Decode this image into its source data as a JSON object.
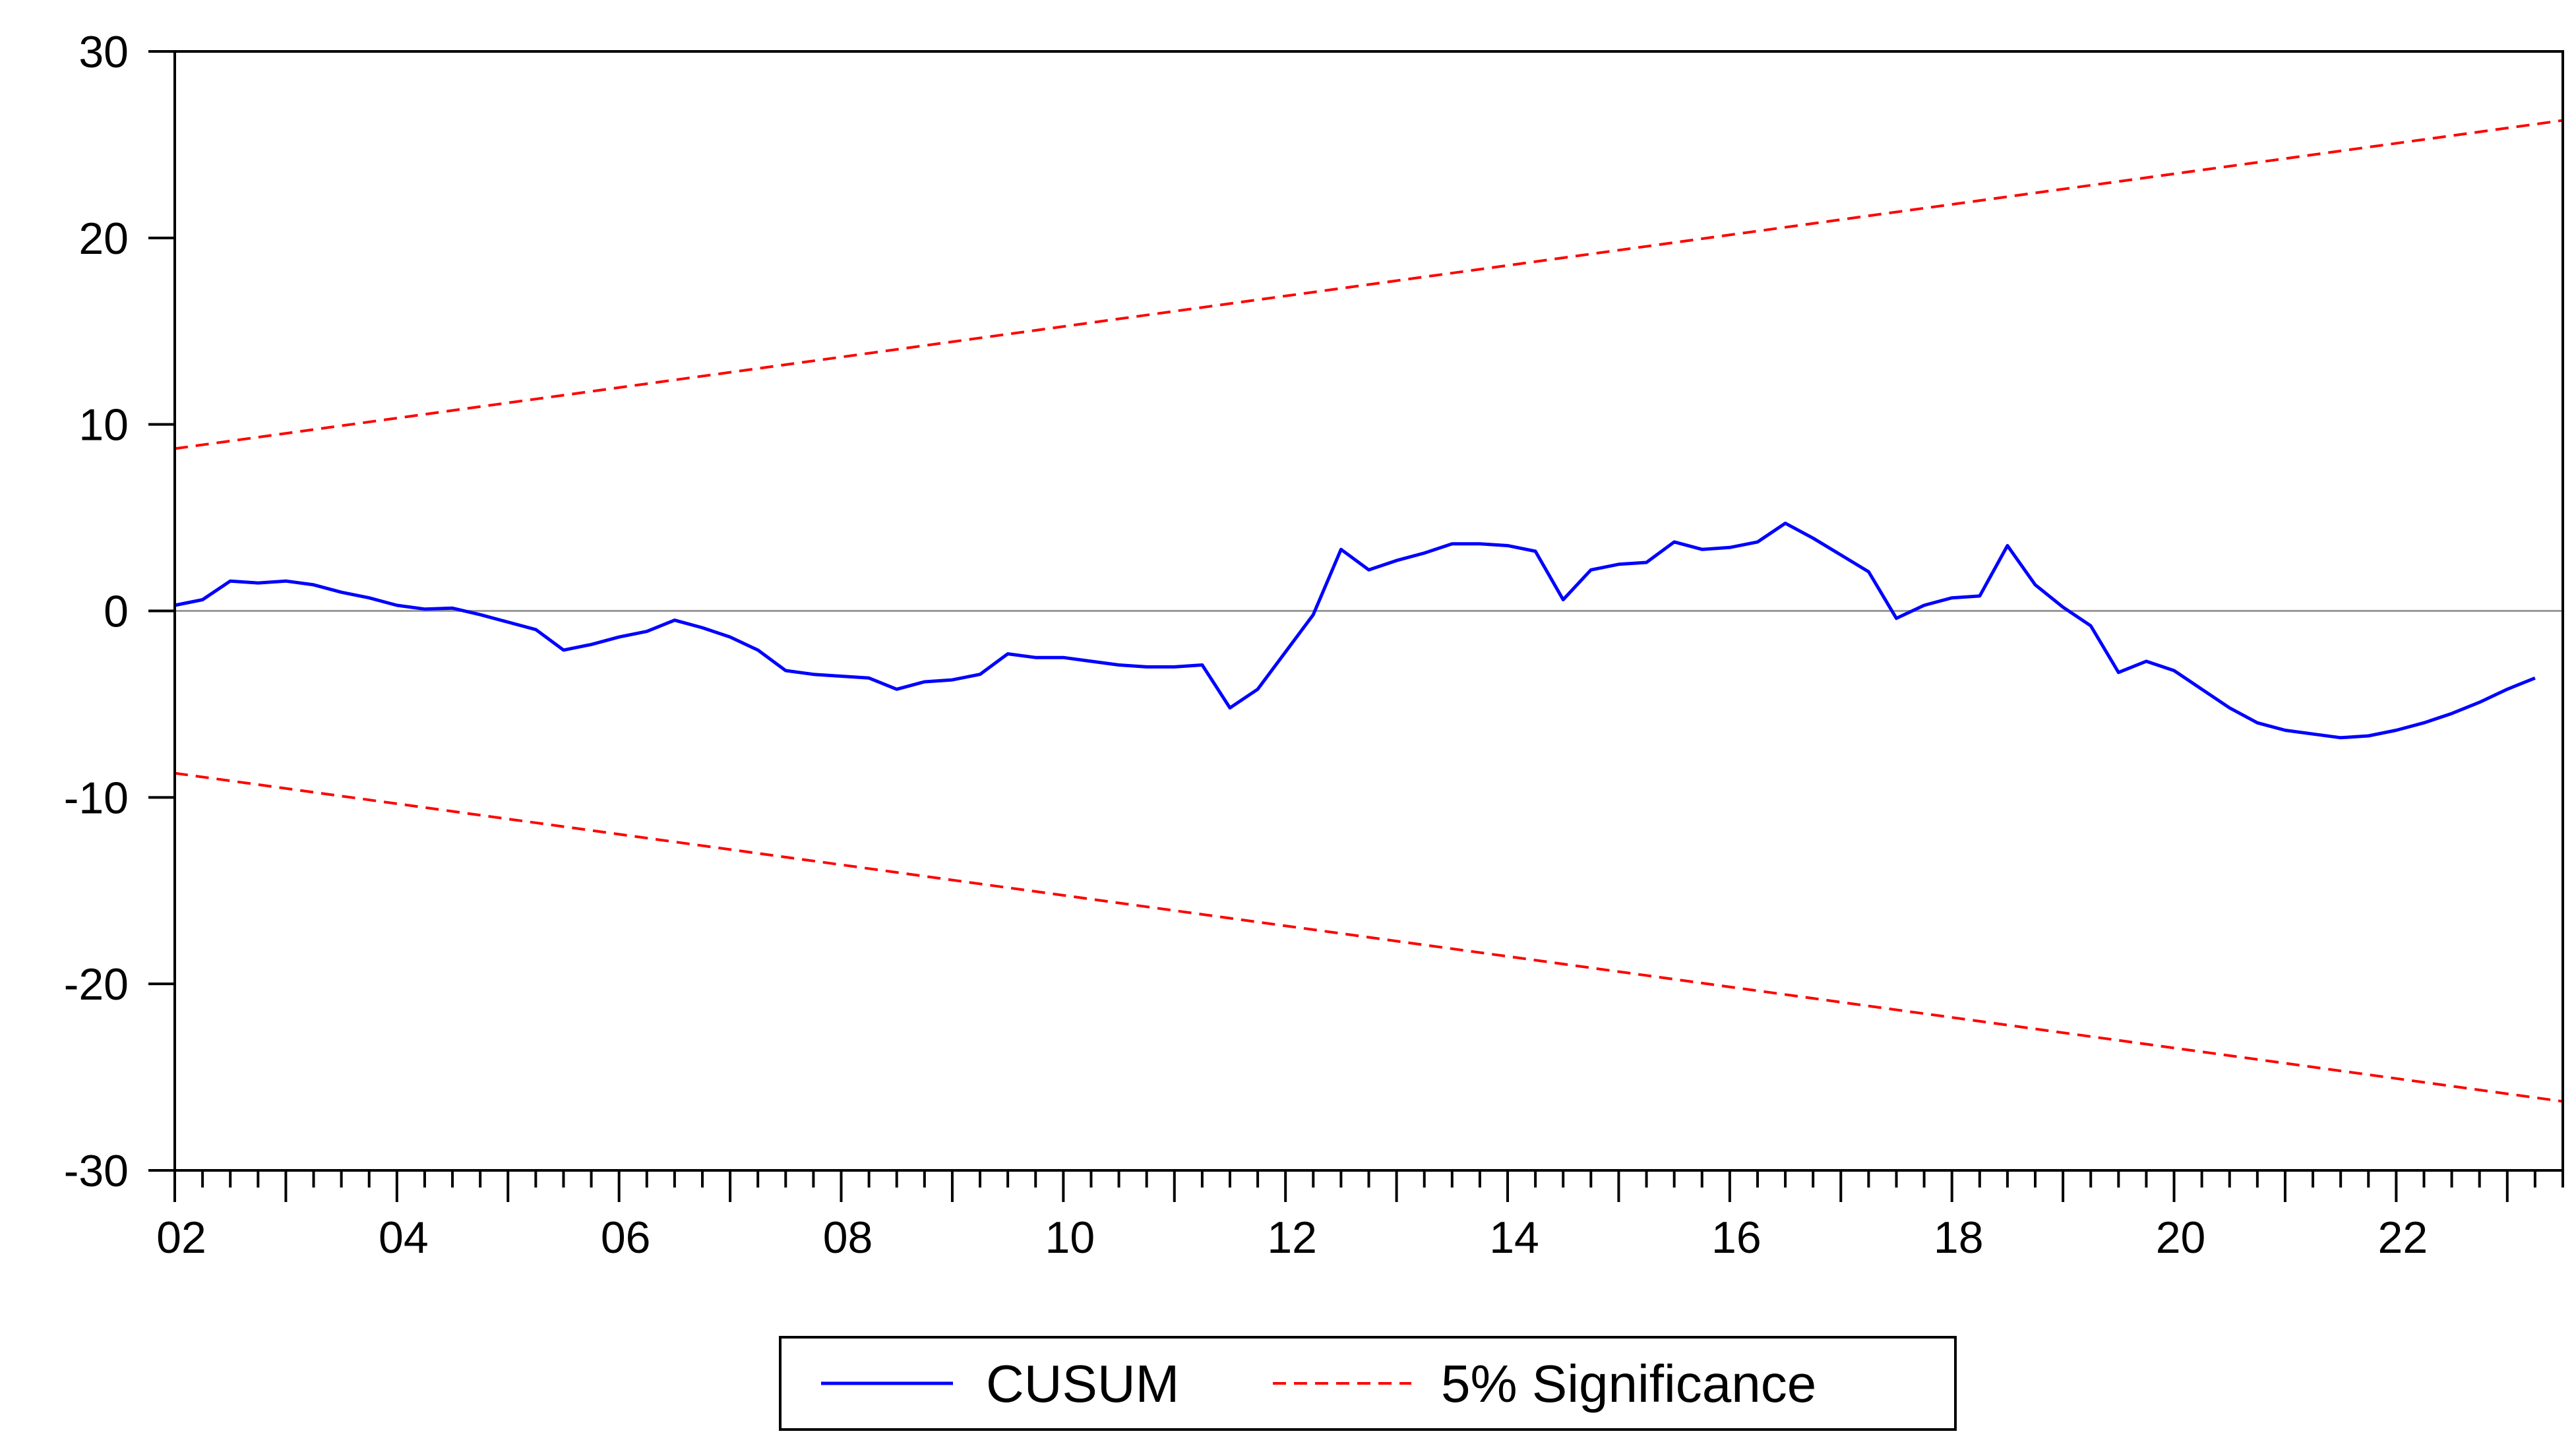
{
  "chart_data": {
    "type": "line",
    "title": "",
    "xlabel": "",
    "ylabel": "",
    "xlim": [
      2002.0,
      2023.5
    ],
    "ylim": [
      -30,
      30
    ],
    "yticks": [
      30,
      20,
      10,
      0,
      -10,
      -20,
      -30
    ],
    "xtick_labels": [
      {
        "x": 2002,
        "label": "02"
      },
      {
        "x": 2004,
        "label": "04"
      },
      {
        "x": 2006,
        "label": "06"
      },
      {
        "x": 2008,
        "label": "08"
      },
      {
        "x": 2010,
        "label": "10"
      },
      {
        "x": 2012,
        "label": "12"
      },
      {
        "x": 2014,
        "label": "14"
      },
      {
        "x": 2016,
        "label": "16"
      },
      {
        "x": 2018,
        "label": "18"
      },
      {
        "x": 2020,
        "label": "20"
      },
      {
        "x": 2022,
        "label": "22"
      }
    ],
    "zero_line": true,
    "grid": false,
    "legend_position": "bottom-center",
    "colors": {
      "cusum": "#0000ff",
      "significance": "#ff0000",
      "zero": "#999999",
      "axis": "#000000"
    },
    "series": [
      {
        "name": "CUSUM",
        "style": "solid",
        "points": [
          [
            2002.0,
            0.3
          ],
          [
            2002.25,
            0.6
          ],
          [
            2002.5,
            1.6
          ],
          [
            2002.75,
            1.5
          ],
          [
            2003.0,
            1.6
          ],
          [
            2003.25,
            1.4
          ],
          [
            2003.5,
            1.0
          ],
          [
            2003.75,
            0.7
          ],
          [
            2004.0,
            0.3
          ],
          [
            2004.25,
            0.1
          ],
          [
            2004.5,
            0.15
          ],
          [
            2004.75,
            -0.2
          ],
          [
            2005.0,
            -0.6
          ],
          [
            2005.25,
            -1.0
          ],
          [
            2005.5,
            -2.1
          ],
          [
            2005.75,
            -1.8
          ],
          [
            2006.0,
            -1.4
          ],
          [
            2006.25,
            -1.1
          ],
          [
            2006.5,
            -0.5
          ],
          [
            2006.75,
            -0.9
          ],
          [
            2007.0,
            -1.4
          ],
          [
            2007.25,
            -2.1
          ],
          [
            2007.5,
            -3.2
          ],
          [
            2007.75,
            -3.4
          ],
          [
            2008.0,
            -3.5
          ],
          [
            2008.25,
            -3.6
          ],
          [
            2008.5,
            -4.2
          ],
          [
            2008.75,
            -3.8
          ],
          [
            2009.0,
            -3.7
          ],
          [
            2009.25,
            -3.4
          ],
          [
            2009.5,
            -2.3
          ],
          [
            2009.75,
            -2.5
          ],
          [
            2010.0,
            -2.5
          ],
          [
            2010.25,
            -2.7
          ],
          [
            2010.5,
            -2.9
          ],
          [
            2010.75,
            -3.0
          ],
          [
            2011.0,
            -3.0
          ],
          [
            2011.25,
            -2.9
          ],
          [
            2011.5,
            -5.2
          ],
          [
            2011.75,
            -4.2
          ],
          [
            2012.0,
            -2.2
          ],
          [
            2012.25,
            -0.2
          ],
          [
            2012.5,
            3.3
          ],
          [
            2012.75,
            2.2
          ],
          [
            2013.0,
            2.7
          ],
          [
            2013.25,
            3.1
          ],
          [
            2013.5,
            3.6
          ],
          [
            2013.75,
            3.6
          ],
          [
            2014.0,
            3.5
          ],
          [
            2014.25,
            3.2
          ],
          [
            2014.5,
            0.6
          ],
          [
            2014.75,
            2.2
          ],
          [
            2015.0,
            2.5
          ],
          [
            2015.25,
            2.6
          ],
          [
            2015.5,
            3.7
          ],
          [
            2015.75,
            3.3
          ],
          [
            2016.0,
            3.4
          ],
          [
            2016.25,
            3.7
          ],
          [
            2016.5,
            4.7
          ],
          [
            2016.75,
            3.9
          ],
          [
            2017.0,
            3.0
          ],
          [
            2017.25,
            2.1
          ],
          [
            2017.5,
            -0.4
          ],
          [
            2017.75,
            0.3
          ],
          [
            2018.0,
            0.7
          ],
          [
            2018.25,
            0.8
          ],
          [
            2018.5,
            3.5
          ],
          [
            2018.75,
            1.4
          ],
          [
            2019.0,
            0.2
          ],
          [
            2019.25,
            -0.8
          ],
          [
            2019.5,
            -3.3
          ],
          [
            2019.75,
            -2.7
          ],
          [
            2020.0,
            -3.2
          ],
          [
            2020.25,
            -4.2
          ],
          [
            2020.5,
            -5.2
          ],
          [
            2020.75,
            -6.0
          ],
          [
            2021.0,
            -6.4
          ],
          [
            2021.25,
            -6.6
          ],
          [
            2021.5,
            -6.8
          ],
          [
            2021.75,
            -6.7
          ],
          [
            2022.0,
            -6.4
          ],
          [
            2022.25,
            -6.0
          ],
          [
            2022.5,
            -5.5
          ],
          [
            2022.75,
            -4.9
          ],
          [
            2023.0,
            -4.2
          ],
          [
            2023.25,
            -3.6
          ]
        ]
      },
      {
        "name": "5% Significance",
        "style": "dashed",
        "points": [
          [
            2002.0,
            8.7
          ],
          [
            2023.5,
            26.3
          ]
        ]
      },
      {
        "name": "5% Significance",
        "style": "dashed",
        "legend": false,
        "points": [
          [
            2002.0,
            -8.7
          ],
          [
            2023.5,
            -26.3
          ]
        ]
      }
    ]
  }
}
